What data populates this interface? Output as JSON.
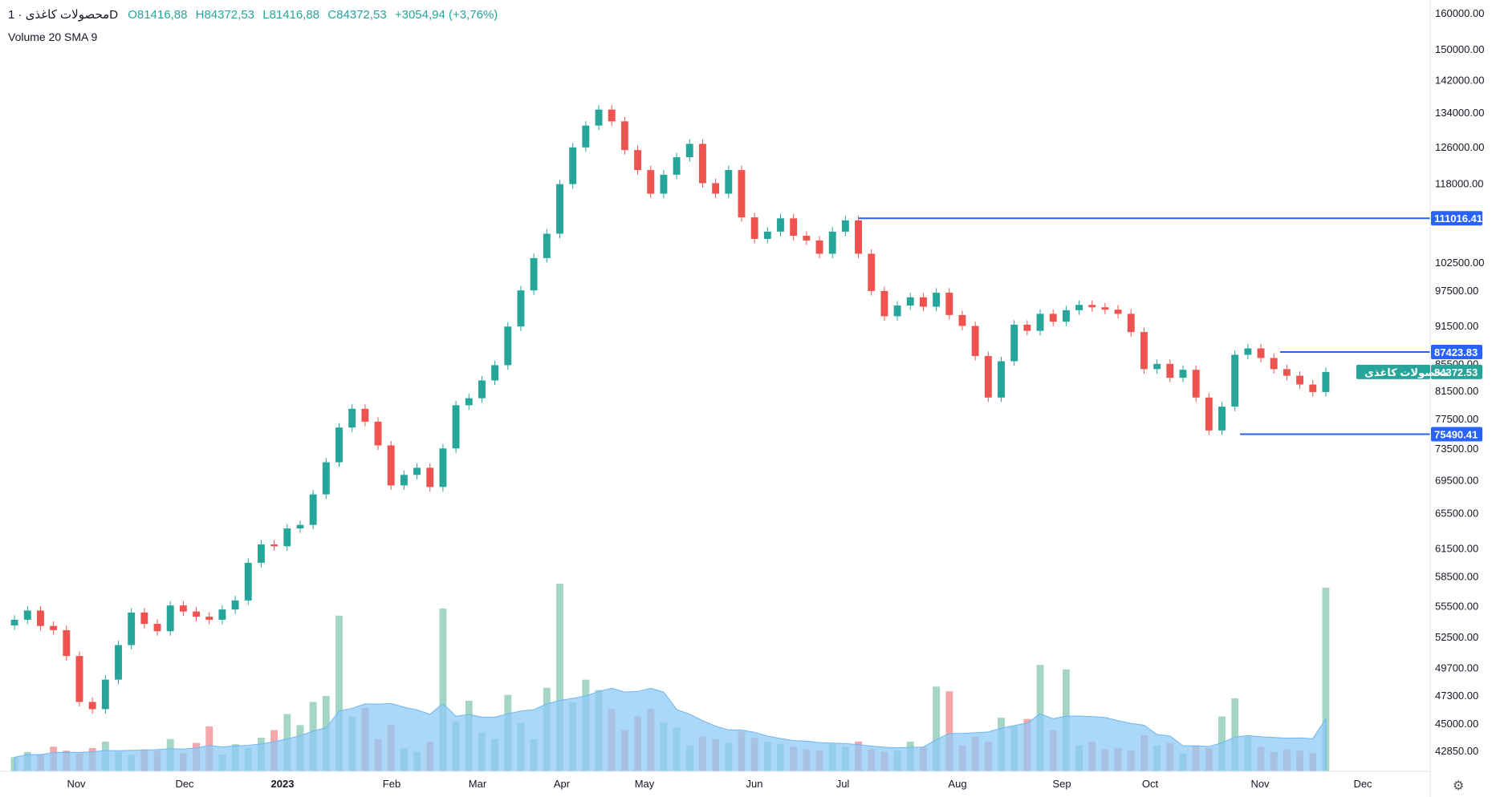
{
  "legend": {
    "symbol": "محصولات کاغذی",
    "interval_sep": "·",
    "interval": "1D",
    "open": "O81416,88",
    "high": "H84372,53",
    "low": "L81416,88",
    "close": "C84372,53",
    "change": "+3054,94 (+3,76%)",
    "volume_indicator": "Volume 20 SMA 9"
  },
  "colors": {
    "up": "#26a69a",
    "down": "#ef5350",
    "vol_up": "#a5d6c5",
    "vol_down": "#f4a7aa",
    "sma_fill": "#8fc9f5",
    "level_line": "#2962ff",
    "last_price": "#26a69a"
  },
  "chart_data": {
    "type": "candlestick",
    "y_scale": "log",
    "ylim": [
      39000,
      168000
    ],
    "x_axis_labels": [
      "Nov",
      "Dec",
      "2023",
      "Feb",
      "Mar",
      "Apr",
      "May",
      "Jun",
      "Jul",
      "Aug",
      "Sep",
      "Oct",
      "Nov",
      "Dec"
    ],
    "y_axis_labels": [
      "160000.00",
      "150000.00",
      "142000.00",
      "134000.00",
      "126000.00",
      "118000.00",
      "102500.00",
      "97500.00",
      "91500.00",
      "81500.00",
      "77500.00",
      "73500.00",
      "69500.00",
      "65500.00",
      "61500.00",
      "58500.00",
      "55500.00",
      "52500.00",
      "49700.00",
      "47300.00",
      "45000.00",
      "42850.00"
    ],
    "price_close_path": [
      54200,
      55100,
      53600,
      53200,
      50800,
      46800,
      46200,
      48700,
      51800,
      54900,
      53800,
      53100,
      55600,
      55000,
      54500,
      54200,
      55200,
      56100,
      60000,
      62000,
      61800,
      63800,
      64200,
      67800,
      71800,
      76400,
      79000,
      77200,
      74000,
      68900,
      70200,
      71100,
      68700,
      73600,
      79500,
      80500,
      83100,
      85400,
      91500,
      97600,
      103400,
      108000,
      118000,
      126000,
      131000,
      134800,
      132000,
      125400,
      121000,
      116000,
      120000,
      123800,
      126800,
      118200,
      116000,
      121000,
      111200,
      107000,
      108400,
      111000,
      107600,
      106700,
      104200,
      108400,
      110600,
      104200,
      97500,
      93200,
      95000,
      96400,
      94800,
      97200,
      93400,
      91600,
      86800,
      80600,
      86000,
      91800,
      90800,
      93600,
      92300,
      94200,
      95100,
      94700,
      94300,
      93600,
      90600,
      84800,
      85600,
      83500,
      84700,
      80600,
      76000,
      79300,
      87000,
      88000,
      86500,
      84800,
      83800,
      82500,
      81400,
      84372
    ],
    "volume_close_path": [
      42400,
      42800,
      42600,
      43200,
      42900,
      42700,
      43100,
      43600,
      42800,
      42600,
      43000,
      42900,
      43800,
      42700,
      43500,
      44800,
      42600,
      43400,
      43100,
      43900,
      44500,
      45800,
      44900,
      46800,
      47300,
      54600,
      45600,
      46300,
      43800,
      44900,
      43100,
      42800,
      43600,
      55300,
      45200,
      46900,
      44300,
      43800,
      47400,
      45100,
      43800,
      48000,
      57800,
      46800,
      48700,
      47800,
      46200,
      44500,
      45600,
      46200,
      45100,
      44700,
      43300,
      44000,
      43800,
      43500,
      44400,
      43900,
      43600,
      43400,
      43200,
      43000,
      42900,
      43400,
      43200,
      43600,
      43000,
      42800,
      42900,
      43600,
      43200,
      48100,
      47700,
      43300,
      44000,
      43600,
      45500,
      44800,
      45400,
      50000,
      44500,
      49600,
      43300,
      43600,
      43000,
      43100,
      42900,
      44100,
      43300,
      43500,
      42700,
      43300,
      43100,
      45600,
      47100,
      44000,
      43200,
      42800,
      43000,
      42900,
      42700,
      57400
    ],
    "levels": [
      {
        "value": "111016.41",
        "price": 111016.41
      },
      {
        "value": "87423.83",
        "price": 87423.83
      },
      {
        "value": "75490.41",
        "price": 75490.41
      }
    ],
    "last_price": {
      "value": "84372.53",
      "label": "محصولات کاغذی",
      "price": 84372.53
    },
    "hidden_tag_value": "85500.00"
  }
}
